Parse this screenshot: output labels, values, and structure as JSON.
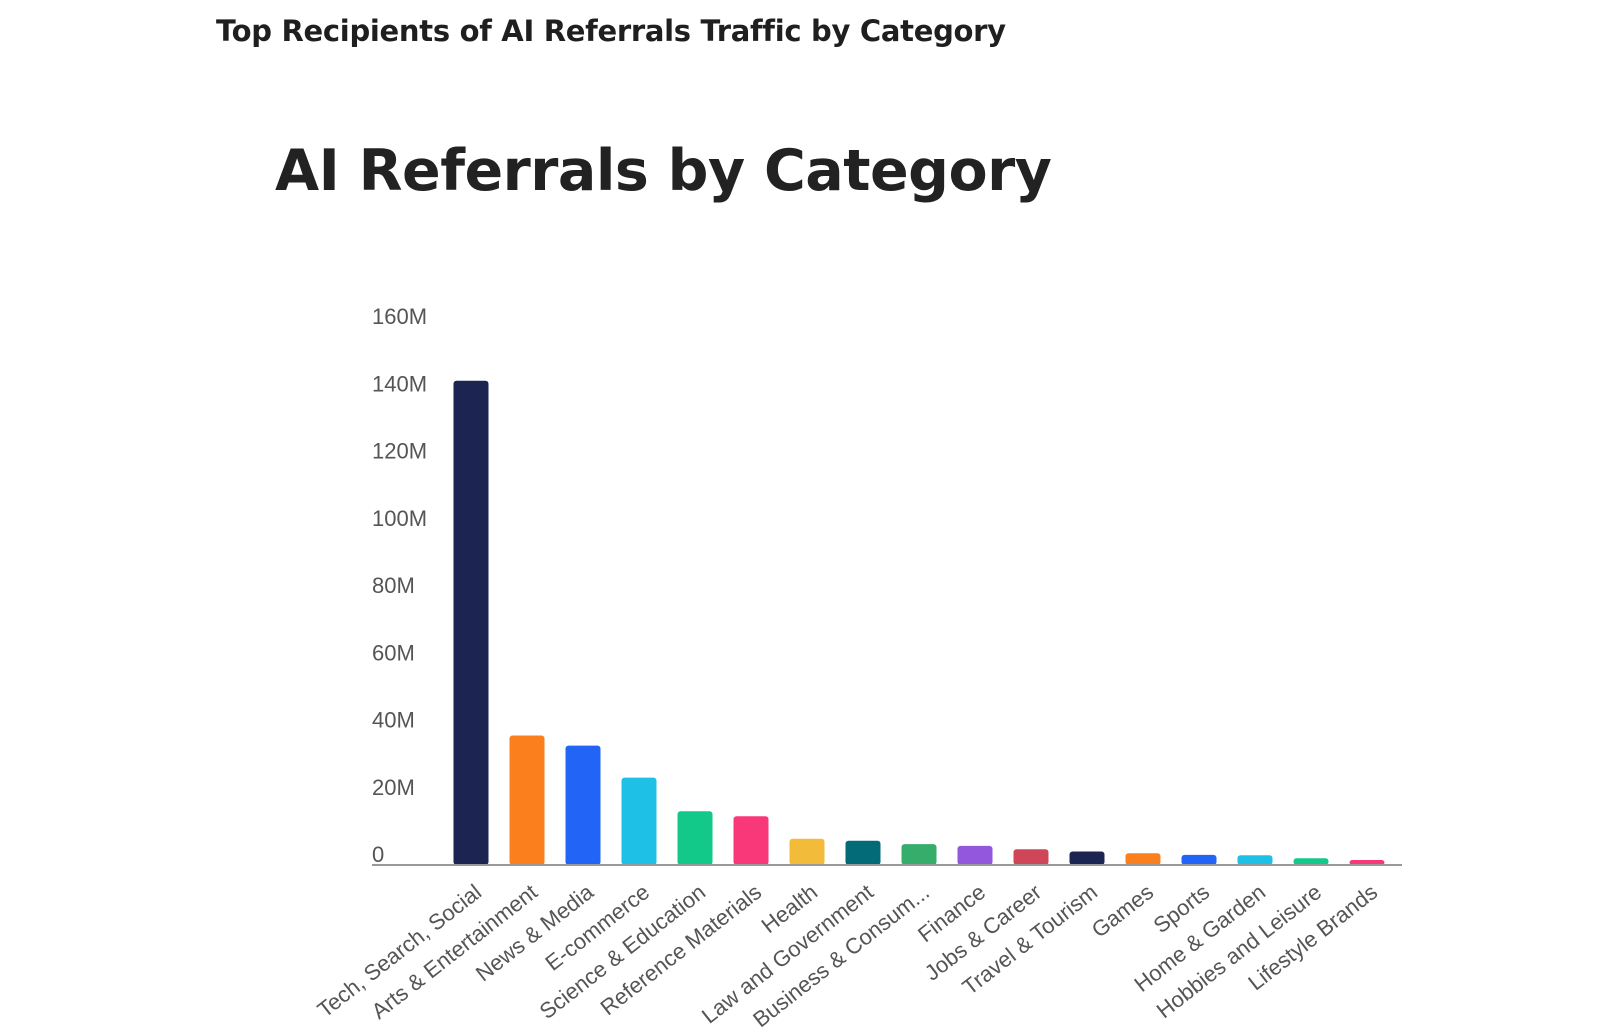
{
  "page": {
    "heading": "Top Recipients of AI Referrals Traffic by Category"
  },
  "chart_data": {
    "type": "bar",
    "title": "AI Referrals by Category",
    "xlabel": "",
    "ylabel": "",
    "ylim": [
      0,
      160000000
    ],
    "yticks": [
      {
        "value": 0,
        "label": "0"
      },
      {
        "value": 20000000,
        "label": "20M"
      },
      {
        "value": 40000000,
        "label": "40M"
      },
      {
        "value": 60000000,
        "label": "60M"
      },
      {
        "value": 80000000,
        "label": "80M"
      },
      {
        "value": 100000000,
        "label": "100M"
      },
      {
        "value": 120000000,
        "label": "120M"
      },
      {
        "value": 140000000,
        "label": "140M"
      },
      {
        "value": 160000000,
        "label": "160M"
      }
    ],
    "grid": false,
    "categories": [
      "Tech, Search, Social",
      "Arts & Entertainment",
      "News & Media",
      "E-commerce",
      "Science & Education",
      "Reference Materials",
      "Health",
      "Law and Government",
      "Business & Consum...",
      "Finance",
      "Jobs & Career",
      "Travel & Tourism",
      "Games",
      "Sports",
      "Home & Garden",
      "Hobbies and Leisure",
      "Lifestyle Brands"
    ],
    "values": [
      144000000,
      38500000,
      35500000,
      26000000,
      16000000,
      14500000,
      7800000,
      7200000,
      6200000,
      5700000,
      4700000,
      4000000,
      3500000,
      3000000,
      2900000,
      2000000,
      1500000
    ],
    "colors": [
      "#1c2452",
      "#fc7f1e",
      "#2264f5",
      "#1ec0e6",
      "#12c98a",
      "#f9387a",
      "#f3bb3a",
      "#036b78",
      "#36ad6b",
      "#9257dc",
      "#cf4658",
      "#1c2452",
      "#fc7f1e",
      "#2264f5",
      "#1ec0e6",
      "#12c98a",
      "#f9387a"
    ]
  }
}
